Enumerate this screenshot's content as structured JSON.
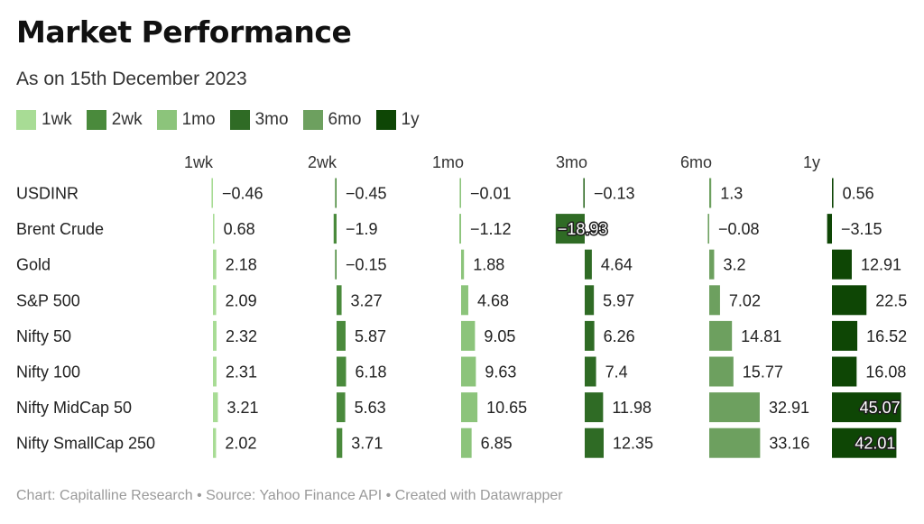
{
  "title": "Market Performance",
  "subtitle": "As on 15th December 2023",
  "footer": "Chart: Capitalline Research • Source: Yahoo Finance API • Created with Datawrapper",
  "legend": [
    {
      "label": "1wk",
      "color": "#a8dc95"
    },
    {
      "label": "2wk",
      "color": "#4a8a3c"
    },
    {
      "label": "1mo",
      "color": "#8cc47b"
    },
    {
      "label": "3mo",
      "color": "#2f6b25"
    },
    {
      "label": "6mo",
      "color": "#6da05f"
    },
    {
      "label": "1y",
      "color": "#0e4605"
    }
  ],
  "chart_data": {
    "type": "bar",
    "columns": [
      "1wk",
      "2wk",
      "1mo",
      "3mo",
      "6mo",
      "1y"
    ],
    "categories": [
      "USDINR",
      "Brent Crude",
      "Gold",
      "S&P 500",
      "Nifty 50",
      "Nifty 100",
      "Nifty MidCap 50",
      "Nifty SmallCap 250"
    ],
    "series": [
      {
        "name": "1wk",
        "color": "#a8dc95",
        "values": [
          -0.46,
          0.68,
          2.18,
          2.09,
          2.32,
          2.31,
          3.21,
          2.02
        ]
      },
      {
        "name": "2wk",
        "color": "#4a8a3c",
        "values": [
          -0.45,
          -1.9,
          -0.15,
          3.27,
          5.87,
          6.18,
          5.63,
          3.71
        ]
      },
      {
        "name": "1mo",
        "color": "#8cc47b",
        "values": [
          -0.01,
          -1.12,
          1.88,
          4.68,
          9.05,
          9.63,
          10.65,
          6.85
        ]
      },
      {
        "name": "3mo",
        "color": "#2f6b25",
        "values": [
          -0.13,
          -18.93,
          4.64,
          5.97,
          6.26,
          7.4,
          11.98,
          12.35
        ]
      },
      {
        "name": "6mo",
        "color": "#6da05f",
        "values": [
          1.3,
          -0.08,
          3.2,
          7.02,
          14.81,
          15.77,
          32.91,
          33.16
        ]
      },
      {
        "name": "1y",
        "color": "#0e4605",
        "values": [
          0.56,
          -3.15,
          12.91,
          22.5,
          16.52,
          16.08,
          45.07,
          42.01
        ]
      }
    ],
    "value_labels": [
      [
        "−0.46",
        "−0.45",
        "−0.01",
        "−0.13",
        "1.3",
        "0.56"
      ],
      [
        "0.68",
        "−1.9",
        "−1.12",
        "−18.93",
        "−0.08",
        "−3.15"
      ],
      [
        "2.18",
        "−0.15",
        "1.88",
        "4.64",
        "3.2",
        "12.91"
      ],
      [
        "2.09",
        "3.27",
        "4.68",
        "5.97",
        "7.02",
        "22.5"
      ],
      [
        "2.32",
        "5.87",
        "9.05",
        "6.26",
        "14.81",
        "16.52"
      ],
      [
        "2.31",
        "6.18",
        "9.63",
        "7.4",
        "15.77",
        "16.08"
      ],
      [
        "3.21",
        "5.63",
        "10.65",
        "11.98",
        "32.91",
        "45.07"
      ],
      [
        "2.02",
        "3.71",
        "6.85",
        "12.35",
        "33.16",
        "42.01"
      ]
    ],
    "grid": false
  }
}
